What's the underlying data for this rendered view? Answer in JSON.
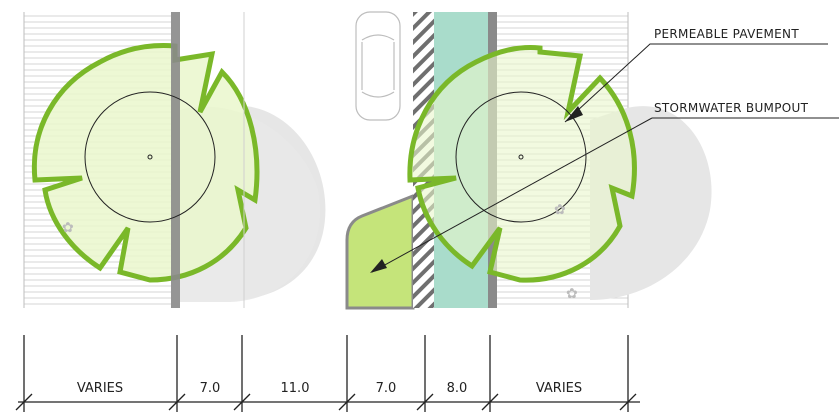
{
  "annotations": {
    "permeable_pavement": "PERMEABLE PAVEMENT",
    "stormwater_bumpout": "STORMWATER BUMPOUT"
  },
  "dimensions": [
    "VARIES",
    "7.0",
    "11.0",
    "7.0",
    "8.0",
    "VARIES"
  ],
  "colors": {
    "canopy_stroke": "#7ab829",
    "canopy_fill": "#eaf7cc",
    "bumpout_fill": "#c5e47a",
    "permeable_fill": "#a9dccb",
    "curb": "#8a8a8a",
    "shadow": "#e4e4e4"
  }
}
